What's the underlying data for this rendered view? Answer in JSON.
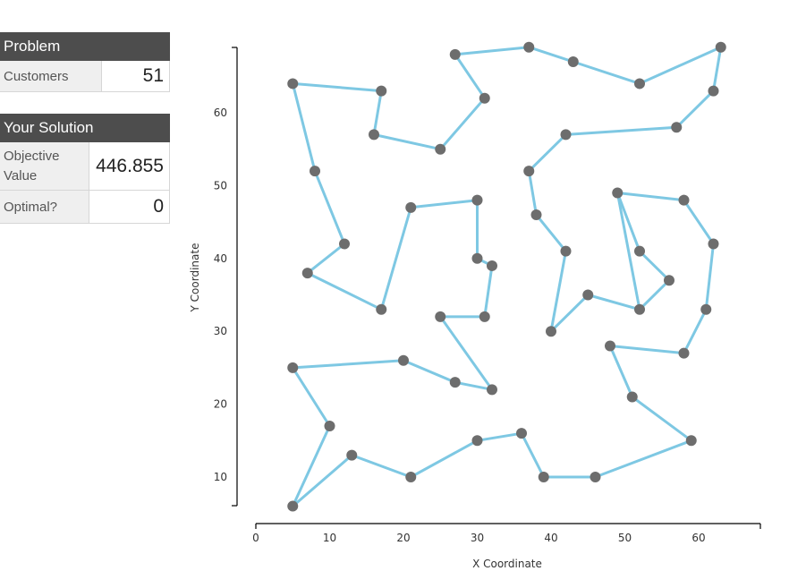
{
  "problem": {
    "header": "Problem",
    "customers_label": "Customers",
    "customers_value": "51"
  },
  "solution": {
    "header": "Your Solution",
    "objective_label": "Objective Value",
    "objective_value": "446.855",
    "optimal_label": "Optimal?",
    "optimal_value": "0"
  },
  "chart_data": {
    "type": "scatter",
    "xlabel": "X Coordinate",
    "ylabel": "Y Coordinate",
    "xlim": [
      0,
      68
    ],
    "ylim": [
      5,
      70
    ],
    "xticks": [
      0,
      10,
      20,
      30,
      40,
      50,
      60
    ],
    "yticks": [
      10,
      20,
      30,
      40,
      50,
      60
    ],
    "grid": false,
    "line_color": "#7ec8e3",
    "point_color": "#6d6d6d",
    "tour": [
      [
        5,
        64
      ],
      [
        17,
        63
      ],
      [
        16,
        57
      ],
      [
        25,
        55
      ],
      [
        31,
        62
      ],
      [
        27,
        68
      ],
      [
        37,
        69
      ],
      [
        43,
        67
      ],
      [
        52,
        64
      ],
      [
        63,
        69
      ],
      [
        62,
        63
      ],
      [
        57,
        58
      ],
      [
        42,
        57
      ],
      [
        37,
        52
      ],
      [
        38,
        46
      ],
      [
        42,
        41
      ],
      [
        40,
        30
      ],
      [
        45,
        35
      ],
      [
        52,
        33
      ],
      [
        49,
        49
      ],
      [
        58,
        48
      ],
      [
        62,
        42
      ],
      [
        61,
        33
      ],
      [
        58,
        27
      ],
      [
        48,
        28
      ],
      [
        51,
        21
      ],
      [
        59,
        15
      ],
      [
        46,
        10
      ],
      [
        39,
        10
      ],
      [
        36,
        16
      ],
      [
        30,
        15
      ],
      [
        21,
        10
      ],
      [
        13,
        13
      ],
      [
        5,
        6
      ],
      [
        10,
        17
      ],
      [
        5,
        25
      ],
      [
        20,
        26
      ],
      [
        27,
        23
      ],
      [
        32,
        22
      ],
      [
        25,
        32
      ],
      [
        31,
        32
      ],
      [
        32,
        39
      ],
      [
        30,
        40
      ],
      [
        30,
        48
      ],
      [
        21,
        47
      ],
      [
        17,
        33
      ],
      [
        7,
        38
      ],
      [
        12,
        42
      ],
      [
        8,
        52
      ],
      [
        5,
        64
      ]
    ],
    "extra_points": [
      [
        52,
        41
      ],
      [
        56,
        37
      ]
    ],
    "extra_path": [
      [
        49,
        49
      ],
      [
        52,
        41
      ],
      [
        56,
        37
      ],
      [
        52,
        33
      ]
    ]
  }
}
